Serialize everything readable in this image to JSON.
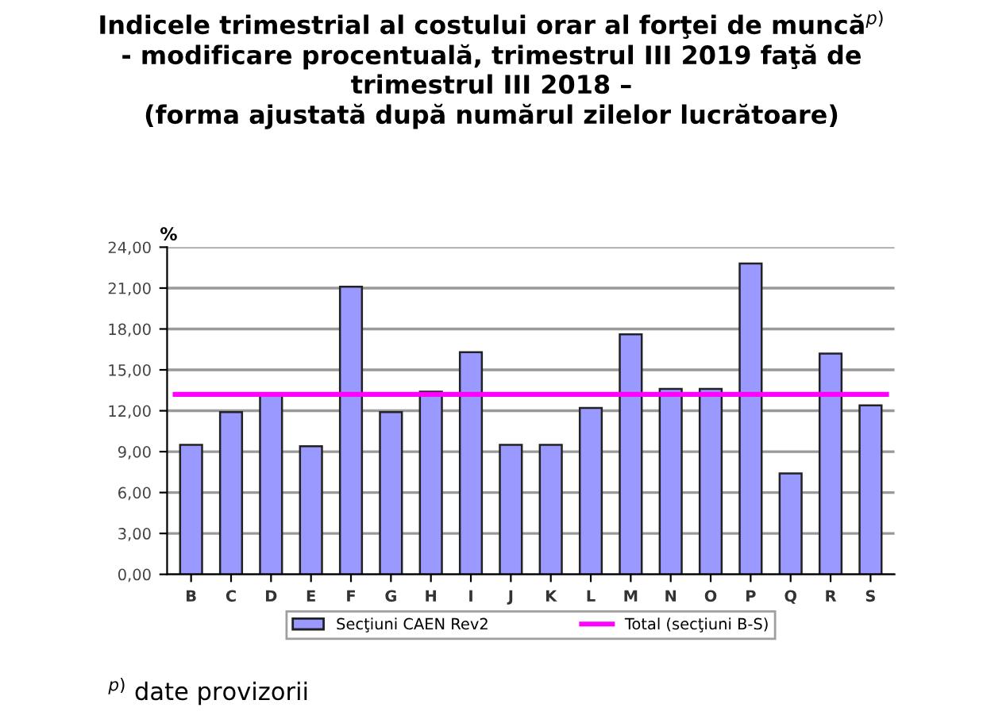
{
  "chart_data": {
    "type": "bar",
    "title": "Indicele trimestrial al costului orar al forţei de muncă$^{p)}$\n- modificare procentuală, trimestrul III 2019 faţă de\ntrimestrul III 2018 –\n(forma ajustată după numărul zilelor lucrătoare)",
    "ylabel": "%",
    "categories": [
      "B",
      "C",
      "D",
      "E",
      "F",
      "G",
      "H",
      "I",
      "J",
      "K",
      "L",
      "M",
      "N",
      "O",
      "P",
      "Q",
      "R",
      "S"
    ],
    "series": [
      {
        "name": "Secţiuni CAEN Rev2",
        "color": "#9999ff",
        "values": [
          9.5,
          11.9,
          13.2,
          9.4,
          21.1,
          11.9,
          13.4,
          16.3,
          9.5,
          9.5,
          12.2,
          17.6,
          13.6,
          13.6,
          22.8,
          7.4,
          16.2,
          12.4
        ]
      }
    ],
    "ref_lines": [
      {
        "axis": "y",
        "value": 13.2,
        "label": "Total (secţiuni B-S)",
        "color": "#ff00ff"
      }
    ],
    "ylim": [
      0,
      24
    ],
    "yticks": [
      {
        "value": 0,
        "label": "0,00"
      },
      {
        "value": 3,
        "label": "3,00"
      },
      {
        "value": 6,
        "label": "6,00"
      },
      {
        "value": 9,
        "label": "9,00"
      },
      {
        "value": 12,
        "label": "12,00"
      },
      {
        "value": 15,
        "label": "15,00"
      },
      {
        "value": 18,
        "label": "18,00"
      },
      {
        "value": 21,
        "label": "21,00"
      },
      {
        "value": 24,
        "label": "24,00"
      }
    ],
    "grid": "y",
    "legend": "bottom",
    "annotations": [
      "$^{p)}$ date provizorii"
    ]
  }
}
